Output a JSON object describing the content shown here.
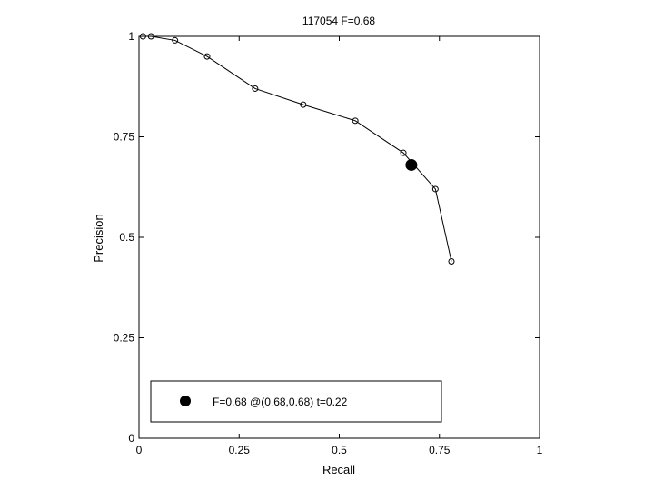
{
  "chart_data": {
    "type": "line",
    "title": "117054 F=0.68",
    "xlabel": "Recall",
    "ylabel": "Precision",
    "xlim": [
      0,
      1
    ],
    "ylim": [
      0,
      1
    ],
    "grid": true,
    "grid_style": "dotted",
    "x_ticks": [
      0,
      0.25,
      0.5,
      0.75,
      1
    ],
    "x_tick_labels": [
      "0",
      "0.25",
      "0.5",
      "0.75",
      "1"
    ],
    "y_ticks": [
      0,
      0.25,
      0.5,
      0.75,
      1
    ],
    "y_tick_labels": [
      "0",
      "0.25",
      "0.5",
      "0.75",
      "1"
    ],
    "series": [
      {
        "marker": "open-circle",
        "color": "#000000",
        "x": [
          0.01,
          0.03,
          0.09,
          0.17,
          0.29,
          0.41,
          0.54,
          0.66,
          0.74,
          0.78
        ],
        "y": [
          1.0,
          1.0,
          0.99,
          0.95,
          0.87,
          0.83,
          0.79,
          0.71,
          0.62,
          0.44
        ]
      }
    ],
    "highlight_point": {
      "x": 0.68,
      "y": 0.68,
      "marker": "filled-circle",
      "color": "#000000"
    },
    "legend": {
      "placement": "bottom",
      "entries": [
        {
          "label": "F=0.68 @(0.68,0.68) t=0.22",
          "marker": "filled-circle"
        }
      ]
    }
  }
}
